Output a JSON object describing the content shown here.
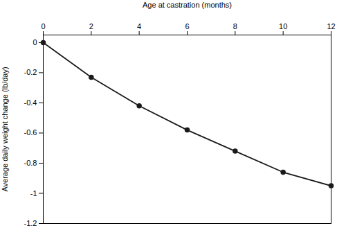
{
  "chart_data": {
    "type": "line",
    "xlabel": "Age at castration (months)",
    "ylabel": "Average daily weight change (lb/day)",
    "x": [
      0,
      2,
      4,
      6,
      8,
      10,
      12
    ],
    "values": [
      0,
      -0.23,
      -0.42,
      -0.58,
      -0.72,
      -0.86,
      -0.95
    ],
    "color": "#1a1a1a",
    "marker": "circle",
    "xlim": [
      0,
      12
    ],
    "ylim": [
      -1.2,
      0.05
    ],
    "xticks": [
      0,
      2,
      4,
      6,
      8,
      10,
      12
    ],
    "yticks": [
      0,
      -0.2,
      -0.4,
      -0.6,
      -0.8,
      -1,
      -1.2
    ],
    "grid": false
  }
}
